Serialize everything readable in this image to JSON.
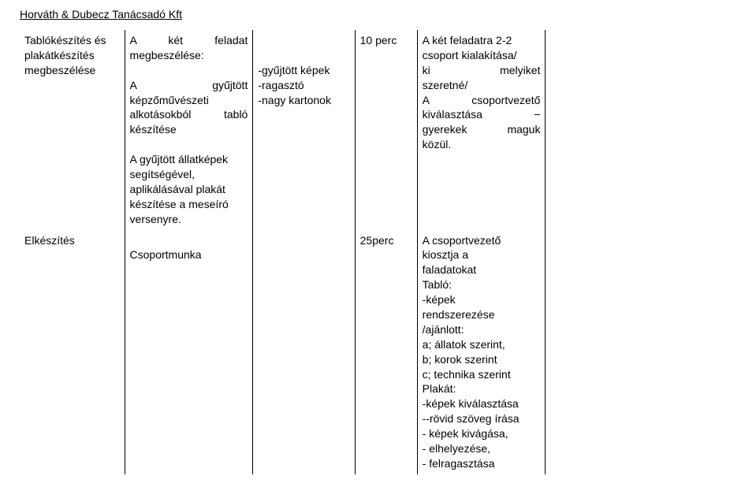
{
  "header": "Horváth & Dubecz Tanácsadó Kft",
  "row1": {
    "col1": {
      "line1": "Tablókészítés és",
      "line2": "plakátkészítés",
      "line3": "megbeszélése"
    },
    "col2": {
      "line1_left": "A",
      "line1_mid": "két",
      "line1_right": "feladat",
      "line2": "megbeszélése:",
      "line3_left": "A",
      "line3_right": "gyűjtött",
      "line4": "képzőművészeti",
      "line5_left": "alkotásokból",
      "line5_right": "tabló",
      "line6": "készítése",
      "line7": "A gyűjtött állatképek",
      "line8": "segítségével,",
      "line9": "aplikálásával plakát",
      "line10": "készítése a meseíró",
      "line11": "versenyre."
    },
    "col3": {
      "line1": "-gyűjtött képek",
      "line2": "-ragasztó",
      "line3": "-nagy kartonok"
    },
    "col4": {
      "line1": "10 perc"
    },
    "col5": {
      "line1": "A két feladatra 2-2",
      "line2": "csoport kialakítása/",
      "line3_left": "ki",
      "line3_right": "melyiket",
      "line4": "szeretné/",
      "line5_left": "A",
      "line5_right": "csoportvezető",
      "line6_left": "kiválasztása",
      "line6_right": "−",
      "line7_left": "gyerekek",
      "line7_right": "maguk",
      "line8": "közül."
    }
  },
  "row2": {
    "col1": {
      "line1": "Elkészítés"
    },
    "col2": {
      "line1": "Csoportmunka"
    },
    "col4": {
      "line1": "25perc"
    },
    "col5": {
      "l1": "A csoportvezető",
      "l2": "kiosztja a",
      "l3": "faladatokat",
      "l4": "Tabló:",
      "l5": "-képek",
      "l6": "rendszerezése",
      "l7": "/ajánlott:",
      "l8": "a; állatok szerint,",
      "l9": "b; korok szerint",
      "l10": "c; technika szerint",
      "l11": "Plakát:",
      "l12": "-képek kiválasztása",
      "l13": "--rövid szöveg írása",
      "l14": "- képek kivágása,",
      "l15": "- elhelyezése,",
      "l16": "- felragasztása"
    }
  }
}
